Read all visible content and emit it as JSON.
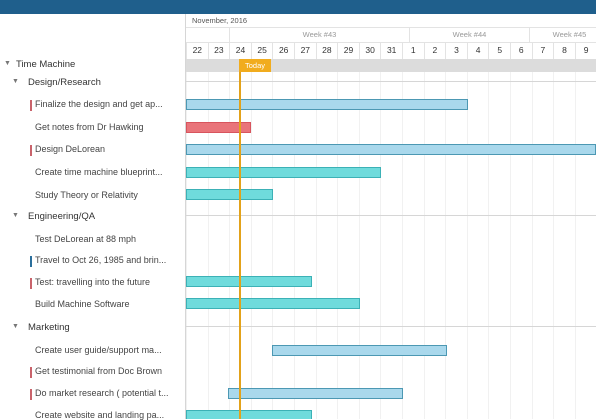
{
  "timeline": {
    "month_label": "November, 2016",
    "weeks": [
      {
        "label": "Week #43"
      },
      {
        "label": "Week #44"
      },
      {
        "label": "Week #45"
      }
    ],
    "days": [
      "22",
      "23",
      "24",
      "25",
      "26",
      "27",
      "28",
      "29",
      "30",
      "31",
      "1",
      "2",
      "3",
      "4",
      "5",
      "6",
      "7",
      "8",
      "9"
    ],
    "today_label": "Today"
  },
  "project": {
    "name": "Time Machine"
  },
  "groups": [
    {
      "name": "Design/Research"
    },
    {
      "name": "Engineering/QA"
    },
    {
      "name": "Marketing"
    }
  ],
  "tasks": [
    {
      "label": "Finalize the design and get ap...",
      "marker": "#c9636b"
    },
    {
      "label": "Get notes from Dr Hawking",
      "marker": ""
    },
    {
      "label": "Design DeLorean",
      "marker": "#c9636b"
    },
    {
      "label": "Create time machine blueprint...",
      "marker": ""
    },
    {
      "label": "Study Theory or Relativity",
      "marker": ""
    },
    {
      "label": "Test DeLorean at 88 mph",
      "marker": ""
    },
    {
      "label": "Travel to Oct 26, 1985 and brin...",
      "marker": "#2b6f9c"
    },
    {
      "label": "Test: travelling into the future",
      "marker": "#c9636b"
    },
    {
      "label": "Build Machine Software",
      "marker": ""
    },
    {
      "label": "Create user guide/support ma...",
      "marker": ""
    },
    {
      "label": "Get testimonial from Doc Brown",
      "marker": "#c9636b"
    },
    {
      "label": "Do market research ( potential t...",
      "marker": "#c9636b"
    },
    {
      "label": "Create website and landing pa...",
      "marker": ""
    }
  ],
  "colors": {
    "header": "#1f5f8c",
    "today": "#f1ac1e",
    "bar_blue": "#a9d8ec",
    "bar_teal": "#6fdbdc",
    "bar_red": "#e9747a"
  }
}
